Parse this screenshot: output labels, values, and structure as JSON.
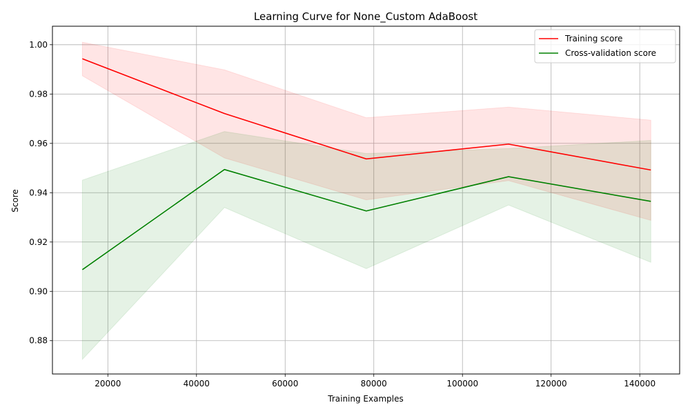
{
  "chart_data": {
    "type": "line",
    "title": "Learning Curve for None_Custom AdaBoost",
    "xlabel": "Training Examples",
    "ylabel": "Score",
    "xlim": [
      7500,
      149000
    ],
    "ylim": [
      0.8665,
      1.0075
    ],
    "x_ticks": [
      20000,
      40000,
      60000,
      80000,
      100000,
      120000,
      140000
    ],
    "y_ticks": [
      0.88,
      0.9,
      0.92,
      0.94,
      0.96,
      0.98,
      1.0
    ],
    "grid": true,
    "legend_position": "upper-right",
    "x": [
      14250,
      46300,
      78300,
      110400,
      142500
    ],
    "series": [
      {
        "name": "Training score",
        "color": "#ff0000",
        "band_color": "#ff0000",
        "values": [
          0.9943,
          0.9721,
          0.9537,
          0.9597,
          0.9492
        ],
        "upper": [
          1.001,
          0.9898,
          0.9704,
          0.9747,
          0.9694
        ],
        "lower": [
          0.9874,
          0.9541,
          0.9371,
          0.9449,
          0.9288
        ]
      },
      {
        "name": "Cross-validation score",
        "color": "#008000",
        "band_color": "#008000",
        "values": [
          0.9088,
          0.9494,
          0.9326,
          0.9465,
          0.9365
        ],
        "upper": [
          0.9451,
          0.9648,
          0.9559,
          0.9579,
          0.9612
        ],
        "lower": [
          0.8724,
          0.934,
          0.9092,
          0.935,
          0.9118
        ]
      }
    ]
  }
}
